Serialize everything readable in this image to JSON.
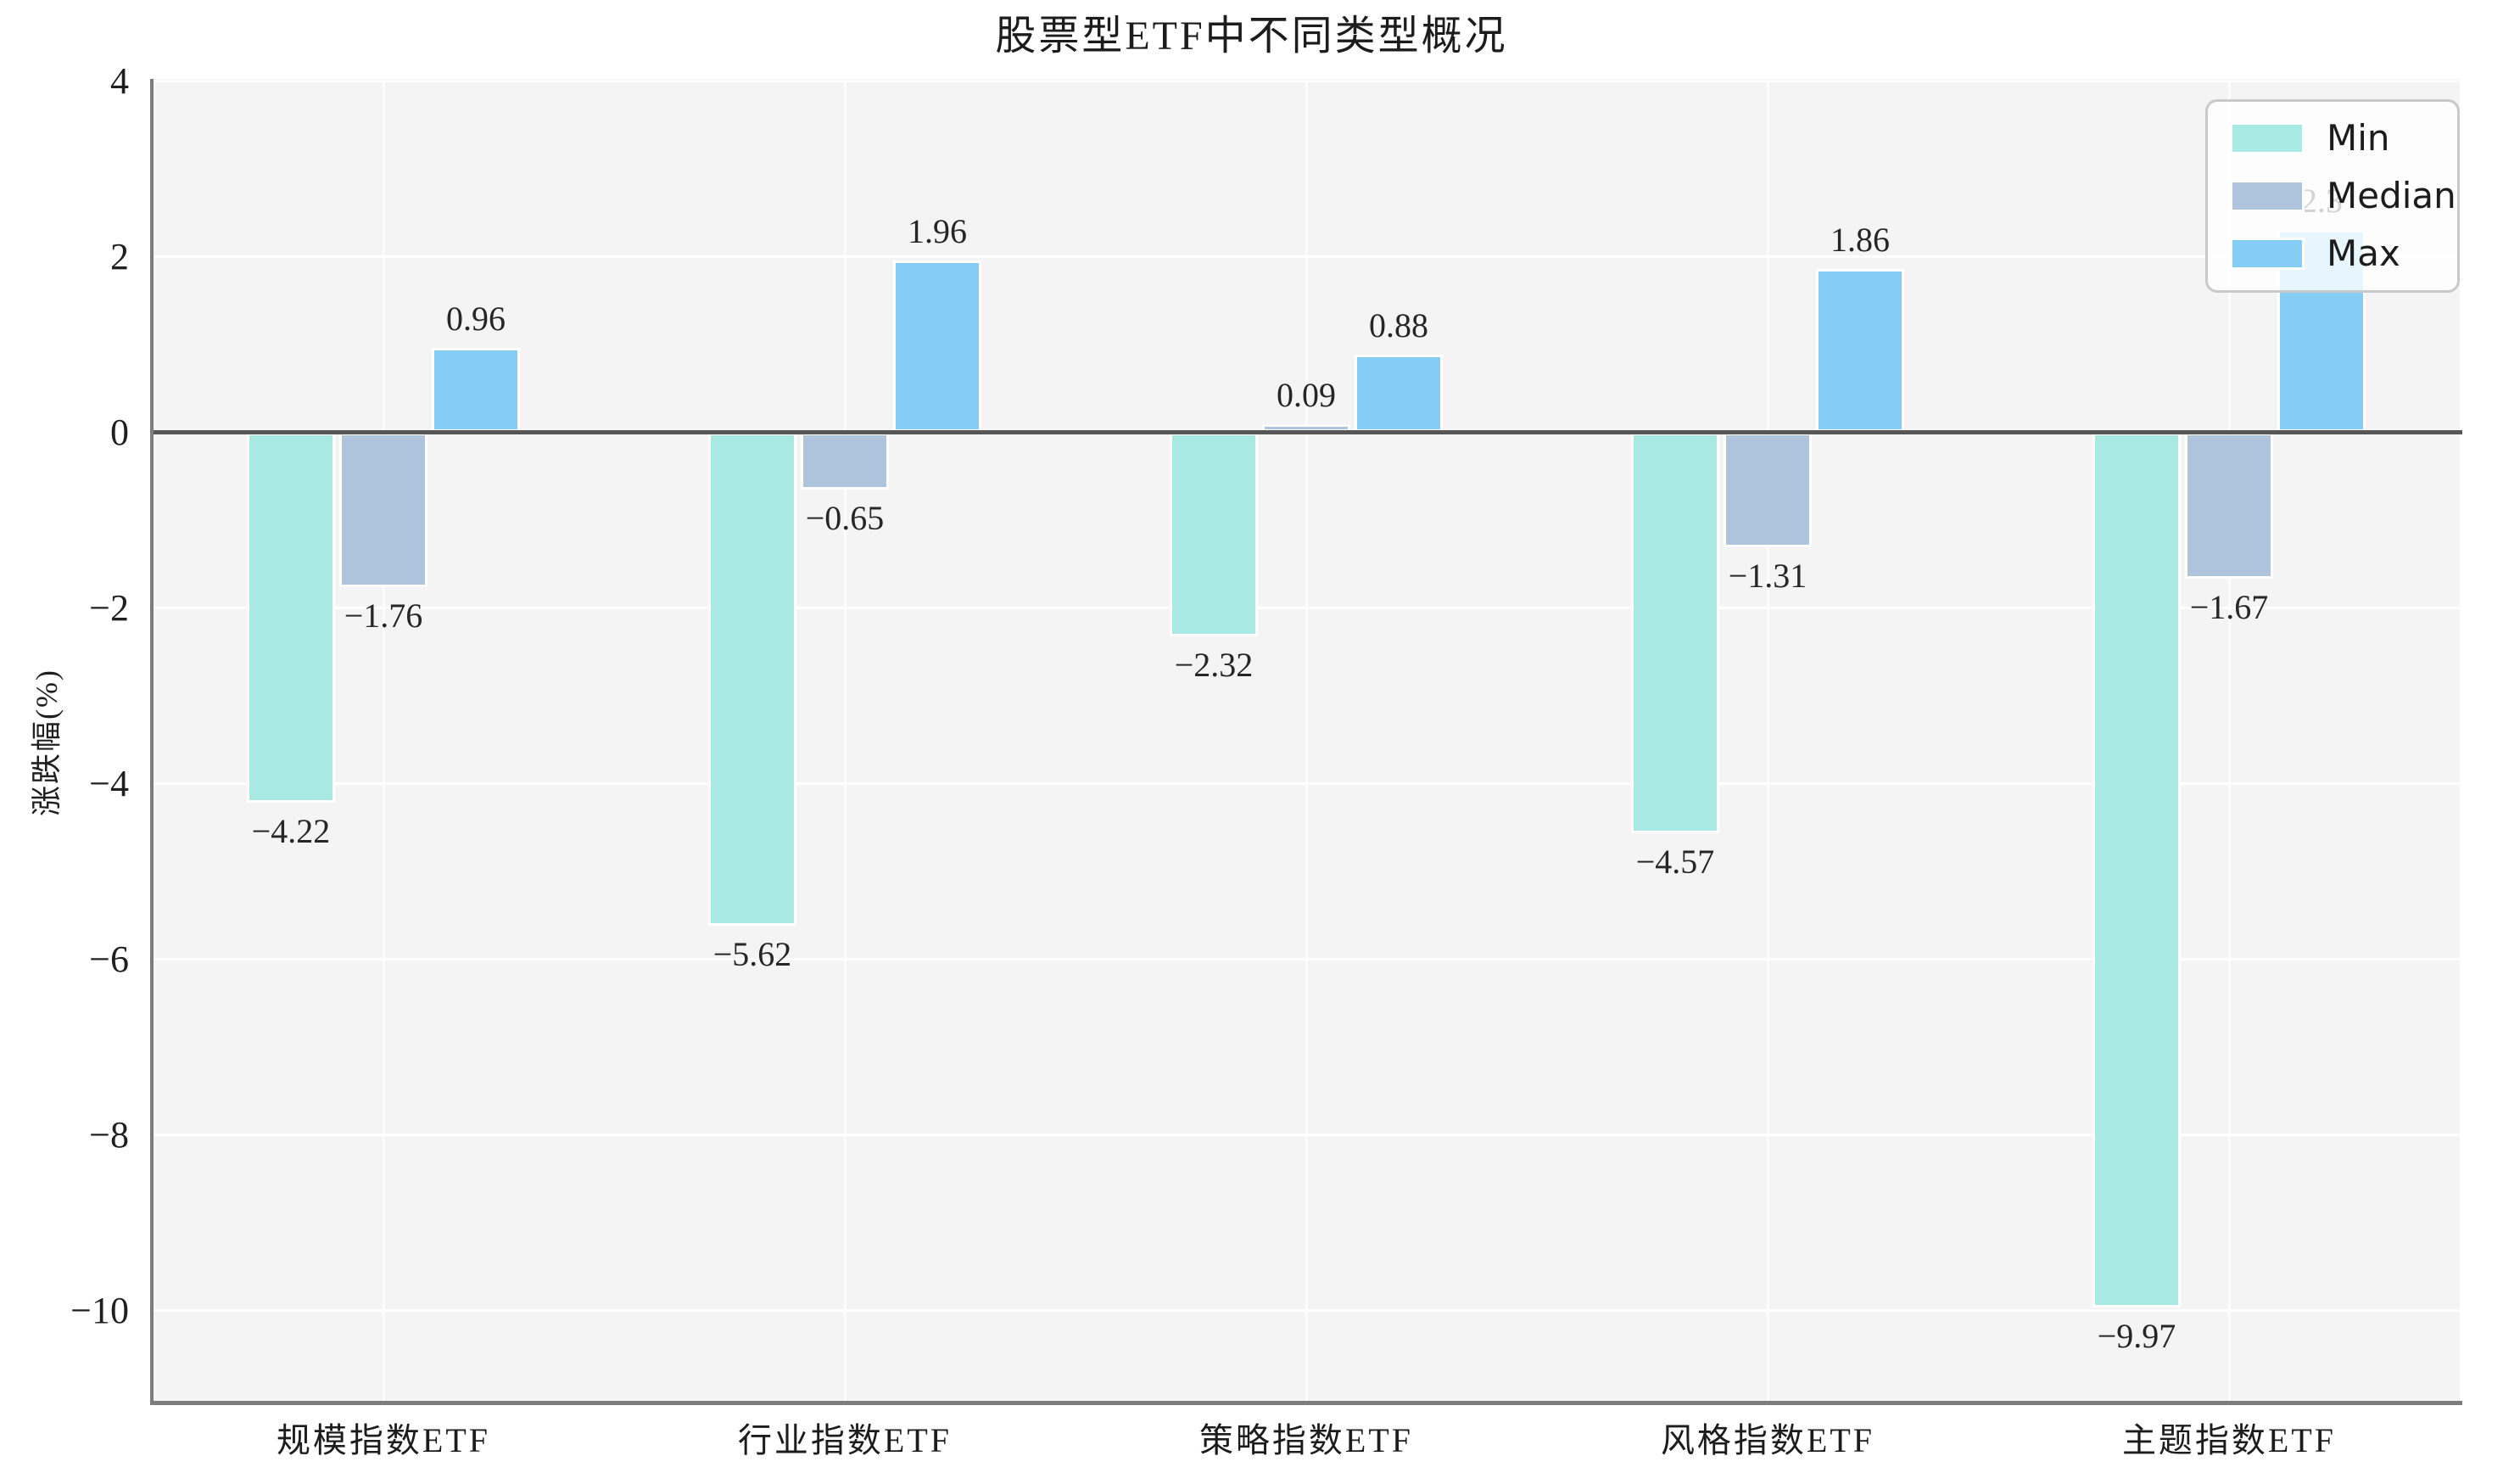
{
  "chart_data": {
    "type": "bar",
    "title": "股票型ETF中不同类型概况",
    "ylabel": "涨跌幅(%)",
    "categories": [
      "规模指数ETF",
      "行业指数ETF",
      "策略指数ETF",
      "风格指数ETF",
      "主题指数ETF"
    ],
    "series": [
      {
        "name": "Min",
        "color": "#a8e9e4",
        "values": [
          -4.22,
          -5.62,
          -2.32,
          -4.57,
          -9.97
        ],
        "labels": [
          "-4.22",
          "-5.62",
          "-2.32",
          "-4.57",
          "-9.97"
        ]
      },
      {
        "name": "Median",
        "color": "#aec3dc",
        "values": [
          -1.76,
          -0.65,
          0.09,
          -1.31,
          -1.67
        ],
        "labels": [
          "-1.76",
          "-0.65",
          "0.09",
          "-1.31",
          "-1.67"
        ]
      },
      {
        "name": "Max",
        "color": "#85cdf5",
        "values": [
          0.96,
          1.96,
          0.88,
          1.86,
          2.3
        ],
        "labels": [
          "0.96",
          "1.96",
          "0.88",
          "1.86",
          "2.3"
        ]
      }
    ],
    "yticks": [
      4,
      2,
      0,
      -2,
      -4,
      -6,
      -8,
      -10
    ],
    "ylim": [
      -11.03,
      4.02
    ],
    "grid": true,
    "zero_line": true,
    "legend": {
      "position": "upper right",
      "entries": [
        "Min",
        "Median",
        "Max"
      ]
    }
  }
}
